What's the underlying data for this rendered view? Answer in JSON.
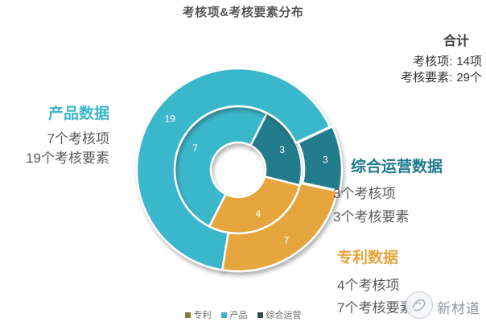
{
  "page": {
    "title": "考核项&考核要素分布"
  },
  "summary": {
    "heading": "合计",
    "rows": [
      {
        "label": "考核项:",
        "value": "14项"
      },
      {
        "label": "考核要素:",
        "value": "29个"
      }
    ]
  },
  "callouts": {
    "product": {
      "heading": "产品数据",
      "line1": "7个考核项",
      "line2": "19个考核要素",
      "color": "#3BB7CC"
    },
    "operations": {
      "heading": "综合运营数据",
      "line1": "3个考核项",
      "line2": "3个考核要素",
      "color": "#1E7A8C"
    },
    "patent": {
      "heading": "专利数据",
      "line1": "4个考核项",
      "line2": "7个考核要素",
      "color": "#E6A53D"
    }
  },
  "legend": {
    "items": [
      {
        "label": "专利",
        "color": "#8F7D3B"
      },
      {
        "label": "产品",
        "color": "#3CB4C8"
      },
      {
        "label": "综合运营",
        "color": "#2B4D50"
      }
    ]
  },
  "watermark": {
    "text": "新材道"
  },
  "chart_data": {
    "type": "pie",
    "subtype": "two-ring-donut",
    "title": "考核项&考核要素分布",
    "categories": [
      "产品",
      "综合运营",
      "专利"
    ],
    "slugs": [
      "product",
      "operations",
      "patent"
    ],
    "colors": [
      "#3BB7CC",
      "#217B8B",
      "#E6A53D"
    ],
    "series": [
      {
        "name": "考核项",
        "ring": "inner",
        "values": [
          7,
          3,
          4
        ],
        "total": 14
      },
      {
        "name": "考核要素",
        "ring": "outer",
        "values": [
          19,
          3,
          7
        ],
        "total": 29
      }
    ],
    "legend_position": "bottom",
    "geometry": {
      "center": [
        296,
        211
      ],
      "rings": [
        {
          "series_index": 0,
          "r_inner": 34,
          "r_outer": 79,
          "label_r": 60,
          "start_angle": 117
        },
        {
          "series_index": 1,
          "r_inner": 79,
          "r_outer": 126,
          "label_r": 106,
          "start_angle": 99,
          "explode": {
            "1": 3
          }
        }
      ]
    }
  }
}
